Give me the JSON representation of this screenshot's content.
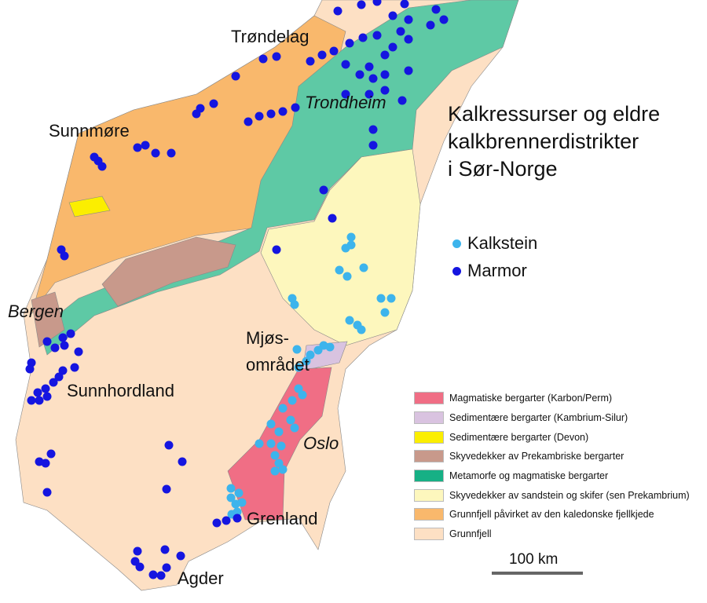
{
  "title": [
    "Kalkressurser og eldre",
    "kalkbrennerdistrikter",
    "i Sør-Norge"
  ],
  "point_legend": [
    {
      "label": "Kalkstein",
      "color": "#3db4ec"
    },
    {
      "label": "Marmor",
      "color": "#1515e0"
    }
  ],
  "legend": [
    {
      "label": "Magmatiske bergarter (Karbon/Perm)",
      "color": "#f06e85"
    },
    {
      "label": "Sedimentære bergarter (Kambrium-Silur)",
      "color": "#d9c3e0"
    },
    {
      "label": "Sedimentære bergarter (Devon)",
      "color": "#fbee00"
    },
    {
      "label": "Skyvedekker av Prekambriske bergarter",
      "color": "#c8998b"
    },
    {
      "label": "Metamorfe og magmatiske bergarter",
      "color": "#16b085"
    },
    {
      "label": "Skyvedekker av sandstein og skifer (sen Prekambrium)",
      "color": "#fdf7bd"
    },
    {
      "label": "Grunnfjell påvirket av den kaledonske fjellkjede",
      "color": "#f9b86c"
    },
    {
      "label": "Grunnfjell",
      "color": "#fde0c4"
    }
  ],
  "place_labels": {
    "trondelag": "Trøndelag",
    "trondheim": "Trondheim",
    "sunnmore": "Sunnmøre",
    "bergen": "Bergen",
    "mjos1": "Mjøs-",
    "mjos2": "området",
    "sunnhordland": "Sunnhordland",
    "oslo": "Oslo",
    "grenland": "Grenland",
    "agder": "Agder"
  },
  "scale": {
    "label": "100 km"
  }
}
